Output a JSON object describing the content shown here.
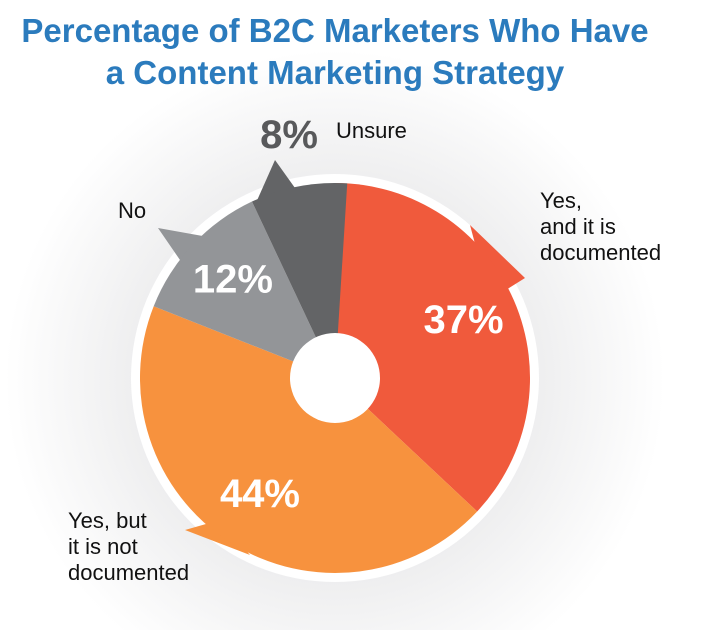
{
  "chart_data": {
    "type": "pie",
    "title": "Percentage of B2C Marketers Who Have a Content Marketing Strategy",
    "categories": [
      "Yes,\nand it is\ndocumented",
      "Yes, but\nit is not\ndocumented",
      "No",
      "Unsure"
    ],
    "values": [
      37,
      44,
      12,
      8
    ],
    "value_labels": [
      "37%",
      "44%",
      "12%",
      "8%"
    ],
    "colors": [
      "#f05a3c",
      "#f7923e",
      "#939598",
      "#636466"
    ]
  }
}
